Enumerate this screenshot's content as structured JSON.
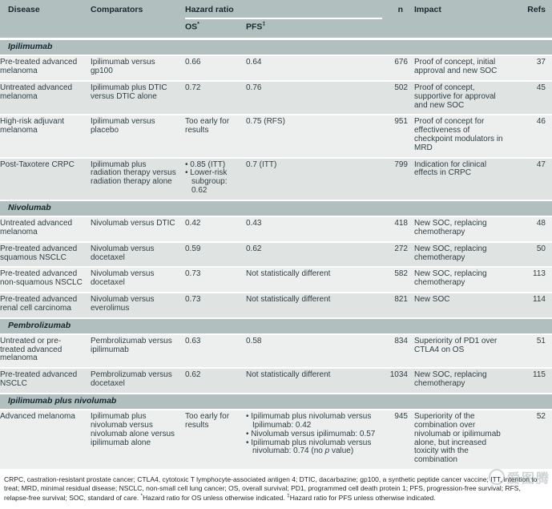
{
  "header": {
    "disease": "Disease",
    "comparators": "Comparators",
    "hazard_ratio": "Hazard ratio",
    "os_label": "OS",
    "os_sup": "*",
    "pfs_label": "PFS",
    "pfs_sup": "‡",
    "n": "n",
    "impact": "Impact",
    "refs": "Refs"
  },
  "sections": [
    {
      "title": "Ipilimumab",
      "rows": [
        {
          "disease": "Pre-treated advanced melanoma",
          "comparators": "Ipilimumab versus gp100",
          "os": "0.66",
          "pfs": "0.64",
          "n": "676",
          "impact": "Proof of concept, initial approval and new SOC",
          "refs": "37"
        },
        {
          "disease": "Untreated advanced melanoma",
          "comparators": "Ipilimumab plus DTIC versus DTIC alone",
          "os": "0.72",
          "pfs": "0.76",
          "n": "502",
          "impact": "Proof of concept, supportive for approval and new SOC",
          "refs": "45"
        },
        {
          "disease": "High-risk adjuvant melanoma",
          "comparators": "Ipilimumab versus placebo",
          "os": "Too early for results",
          "pfs": "0.75 (RFS)",
          "n": "951",
          "impact": "Proof of concept for effectiveness of checkpoint modulators in MRD",
          "refs": "46"
        },
        {
          "disease": "Post-Taxotere CRPC",
          "comparators": "Ipilimumab plus radiation therapy versus radiation therapy alone",
          "os": [
            "0.85 (ITT)",
            "Lower-risk subgroup: 0.62"
          ],
          "pfs": "0.7 (ITT)",
          "n": "799",
          "impact": "Indication for clinical effects in CRPC",
          "refs": "47"
        }
      ]
    },
    {
      "title": "Nivolumab",
      "rows": [
        {
          "disease": "Untreated advanced melanoma",
          "comparators": "Nivolumab versus DTIC",
          "os": "0.42",
          "pfs": "0.43",
          "n": "418",
          "impact": "New SOC, replacing chemotherapy",
          "refs": "48"
        },
        {
          "disease": "Pre-treated advanced squamous NSCLC",
          "comparators": "Nivolumab versus docetaxel",
          "os": "0.59",
          "pfs": "0.62",
          "n": "272",
          "impact": "New SOC, replacing chemotherapy",
          "refs": "50"
        },
        {
          "disease": "Pre-treated advanced non-squamous NSCLC",
          "comparators": "Nivolumab versus docetaxel",
          "os": "0.73",
          "pfs": "Not statistically different",
          "n": "582",
          "impact": "New SOC, replacing chemotherapy",
          "refs": "113"
        },
        {
          "disease": "Pre-treated advanced renal cell carcinoma",
          "comparators": "Nivolumab versus everolimus",
          "os": "0.73",
          "pfs": "Not statistically different",
          "n": "821",
          "impact": "New SOC",
          "refs": "114"
        }
      ]
    },
    {
      "title": "Pembrolizumab",
      "rows": [
        {
          "disease": "Untreated or pre-treated advanced melanoma",
          "comparators": "Pembrolizumab versus ipilimumab",
          "os": "0.63",
          "pfs": "0.58",
          "n": "834",
          "impact": "Superiority of PD1 over CTLA4 on OS",
          "refs": "51"
        },
        {
          "disease": "Pre-treated advanced NSCLC",
          "comparators": "Pembrolizumab versus docetaxel",
          "os": "0.62",
          "pfs": "Not statistically different",
          "n": "1034",
          "impact": "New SOC, replacing chemotherapy",
          "refs": "115"
        }
      ]
    },
    {
      "title": "Ipilimumab plus nivolumab",
      "rows": [
        {
          "disease": "Advanced melanoma",
          "comparators": "Ipilimumab plus nivolumab versus nivolumab alone versus ipilimumab alone",
          "os": "Too early for results",
          "pfs": [
            "Ipilimumab plus nivolumab versus Ipilimumab: 0.42",
            "Nivolumab versus ipilimumab: 0.57",
            "Ipilimumab plus nivolumab versus nivolumab: 0.74 (no p value)"
          ],
          "n": "945",
          "impact": "Superiority of the combination over nivolumab or ipilimumab alone, but increased toxicity with the combination",
          "refs": "52"
        }
      ]
    }
  ],
  "footnote": {
    "abbreviations": "CRPC, castration-resistant prostate cancer; CTLA4, cytotoxic T lymphocyte-associated antigen 4; DTIC, dacarbazine; gp100, a synthetic peptide cancer vaccine; ITT, intention to treat; MRD, minimal residual disease; NSCLC, non-small cell lung cancer; OS, overall survival; PD1, programmed cell death protein 1; PFS, progression-free survival; RFS, relapse-free survival; SOC, standard of care. ",
    "os_sup": "*",
    "os_note": "Hazard ratio for OS unless otherwise indicated. ",
    "pfs_sup": "‡",
    "pfs_note": "Hazard ratio for PFS unless otherwise indicated."
  },
  "watermark": {
    "text": "爱图腾"
  },
  "colors": {
    "band": "#b1c0bf",
    "row_light": "#ecefee",
    "row_dark": "#dfe4e3",
    "header_text": "#16272e",
    "body_text": "#2f3e44"
  }
}
